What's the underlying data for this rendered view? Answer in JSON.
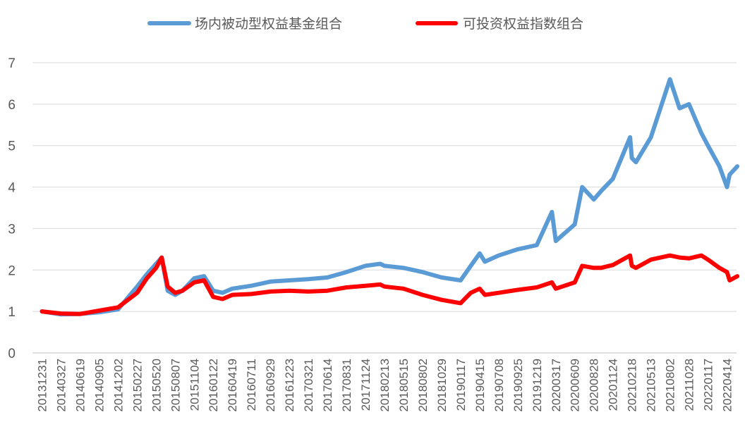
{
  "chart_data": {
    "type": "line",
    "title": "",
    "xlabel": "",
    "ylabel": "",
    "ylim": [
      0,
      7
    ],
    "yticks": [
      0,
      1,
      2,
      3,
      4,
      5,
      6,
      7
    ],
    "grid": "horizontal",
    "legend_position": "top",
    "x_tick_labels": [
      "20131231",
      "20140327",
      "20140619",
      "20140905",
      "20141202",
      "20150227",
      "20150520",
      "20150807",
      "20151104",
      "20160122",
      "20160419",
      "20160711",
      "20160929",
      "20161223",
      "20170321",
      "20170614",
      "20170831",
      "20171124",
      "20180213",
      "20180515",
      "20180802",
      "20181029",
      "20190117",
      "20190415",
      "20190708",
      "20190925",
      "20191219",
      "20200317",
      "20200609",
      "20200828",
      "20201124",
      "20210218",
      "20210513",
      "20210802",
      "20211028",
      "20220117",
      "20220414"
    ],
    "series": [
      {
        "name": "场内被动型权益基金组合",
        "color": "#5b9bd5",
        "x": [
          "20131231",
          "20140327",
          "20140619",
          "20140905",
          "20141202",
          "20150227",
          "20150410",
          "20150520",
          "20150612",
          "20150707",
          "20150807",
          "20150910",
          "20151104",
          "20151215",
          "20160122",
          "20160305",
          "20160419",
          "20160711",
          "20160929",
          "20161223",
          "20170321",
          "20170614",
          "20170831",
          "20171124",
          "20180126",
          "20180213",
          "20180515",
          "20180802",
          "20181029",
          "20190117",
          "20190305",
          "20190415",
          "20190508",
          "20190708",
          "20190925",
          "20191219",
          "20200228",
          "20200317",
          "20200609",
          "20200710",
          "20200828",
          "20200930",
          "20201124",
          "20210210",
          "20210218",
          "20210308",
          "20210513",
          "20210802",
          "20210915",
          "20211028",
          "20211220",
          "20220117",
          "20220310",
          "20220414",
          "20220426",
          "20220531"
        ],
        "values": [
          1.0,
          0.93,
          0.94,
          0.98,
          1.05,
          1.6,
          1.9,
          2.15,
          2.3,
          1.5,
          1.4,
          1.5,
          1.8,
          1.85,
          1.5,
          1.45,
          1.55,
          1.62,
          1.72,
          1.75,
          1.78,
          1.82,
          1.95,
          2.1,
          2.15,
          2.1,
          2.05,
          1.95,
          1.82,
          1.75,
          2.1,
          2.4,
          2.2,
          2.35,
          2.5,
          2.6,
          3.4,
          2.7,
          3.1,
          4.0,
          3.7,
          3.9,
          4.2,
          5.2,
          4.7,
          4.6,
          5.2,
          6.6,
          5.9,
          6.0,
          5.3,
          5.0,
          4.5,
          4.0,
          4.3,
          4.5
        ]
      },
      {
        "name": "可投资权益指数组合",
        "color": "#ff0000",
        "x": [
          "20131231",
          "20140327",
          "20140619",
          "20140905",
          "20141202",
          "20150227",
          "20150410",
          "20150520",
          "20150612",
          "20150707",
          "20150807",
          "20150910",
          "20151104",
          "20151215",
          "20160122",
          "20160305",
          "20160419",
          "20160711",
          "20160929",
          "20161223",
          "20170321",
          "20170614",
          "20170831",
          "20171124",
          "20180126",
          "20180213",
          "20180515",
          "20180802",
          "20181029",
          "20190117",
          "20190305",
          "20190415",
          "20190508",
          "20190708",
          "20190925",
          "20191219",
          "20200228",
          "20200317",
          "20200609",
          "20200710",
          "20200828",
          "20200930",
          "20201124",
          "20210210",
          "20210218",
          "20210308",
          "20210513",
          "20210802",
          "20210915",
          "20211028",
          "20211220",
          "20220117",
          "20220310",
          "20220414",
          "20220426",
          "20220531"
        ],
        "values": [
          1.0,
          0.95,
          0.94,
          1.02,
          1.1,
          1.45,
          1.8,
          2.05,
          2.3,
          1.6,
          1.45,
          1.5,
          1.7,
          1.75,
          1.35,
          1.3,
          1.4,
          1.42,
          1.48,
          1.5,
          1.48,
          1.5,
          1.58,
          1.62,
          1.65,
          1.6,
          1.55,
          1.4,
          1.28,
          1.2,
          1.45,
          1.55,
          1.4,
          1.45,
          1.52,
          1.58,
          1.7,
          1.55,
          1.7,
          2.1,
          2.05,
          2.05,
          2.12,
          2.35,
          2.1,
          2.05,
          2.25,
          2.35,
          2.3,
          2.28,
          2.35,
          2.25,
          2.05,
          1.95,
          1.75,
          1.85
        ]
      }
    ]
  }
}
